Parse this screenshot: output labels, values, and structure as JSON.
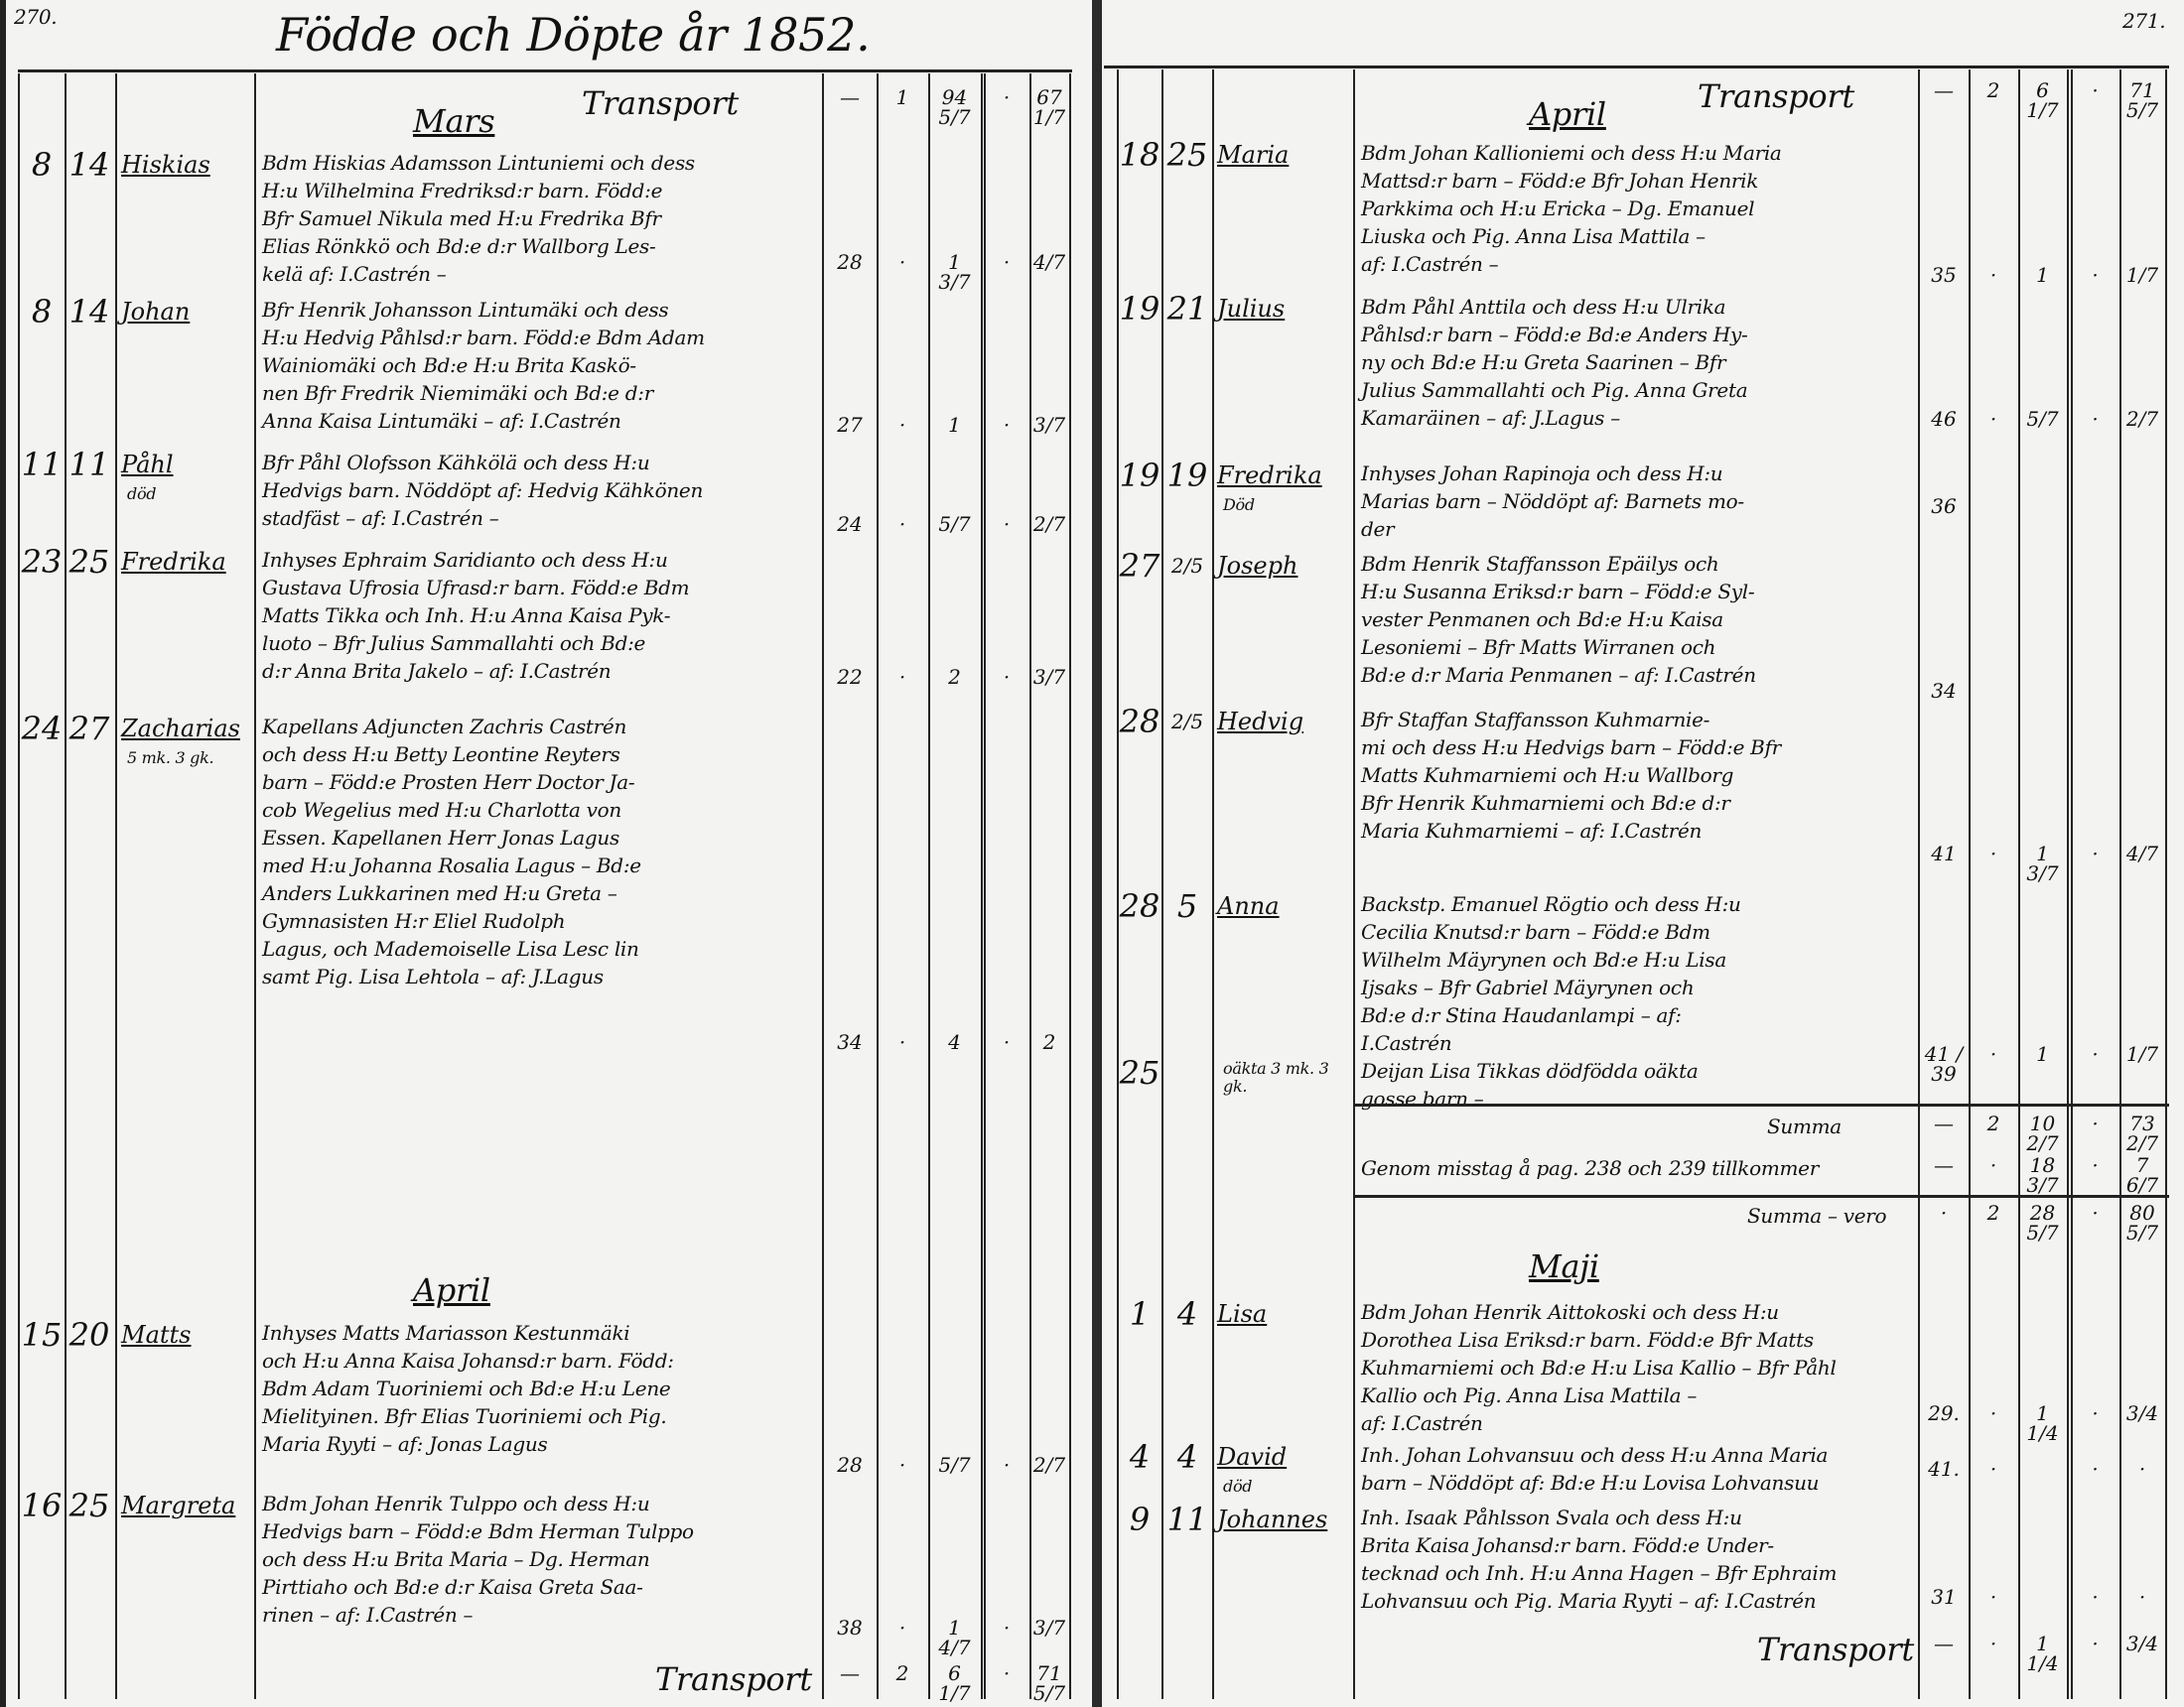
{
  "left_page": {
    "page_number": "270.",
    "title": "Födde och Döpte år 1852.",
    "sections": [
      {
        "month": "Mars",
        "transport_label": "Transport",
        "transport": [
          "—",
          "1",
          "94 5/7",
          "·",
          "67 1/7"
        ]
      },
      {
        "month": "April"
      }
    ],
    "entries": [
      {
        "day": "8",
        "bapt": "14",
        "name": "Hiskias",
        "note": "",
        "lines": [
          "Bdm Hiskias Adamsson Lintuniemi och dess",
          "H:u Wilhelmina Fredriksd:r barn. Född:e",
          "Bfr Samuel Nikula med H:u Fredrika Bfr",
          "Elias Rönkkö och Bd:e d:r Wallborg Les-",
          "kelä                af: I.Castrén –"
        ],
        "nums": [
          "28",
          "·",
          "1 3/7",
          "·",
          "4/7"
        ]
      },
      {
        "day": "8",
        "bapt": "14",
        "name": "Johan",
        "note": "",
        "lines": [
          "Bfr Henrik Johansson Lintumäki och dess",
          "H:u Hedvig Påhlsd:r barn. Född:e Bdm Adam",
          "Wainiomäki och Bd:e H:u Brita Kaskö-",
          "nen Bfr Fredrik Niemimäki och Bd:e d:r",
          "Anna Kaisa Lintumäki – af: I.Castrén"
        ],
        "nums": [
          "27",
          "·",
          "1",
          "·",
          "3/7"
        ]
      },
      {
        "day": "11",
        "bapt": "11",
        "name": "Påhl",
        "note": "död",
        "lines": [
          "Bfr Påhl Olofsson Kähkölä och dess H:u",
          "Hedvigs barn. Nöddöpt af: Hedvig Kähkönen",
          "              stadfäst – af: I.Castrén –"
        ],
        "nums": [
          "24",
          "·",
          "5/7",
          "·",
          "2/7"
        ]
      },
      {
        "day": "23",
        "bapt": "25",
        "name": "Fredrika",
        "note": "",
        "lines": [
          "Inhyses Ephraim Saridianto och dess H:u",
          "Gustava Ufrosia Ufrasd:r barn. Född:e Bdm",
          "Matts Tikka och Inh. H:u Anna Kaisa Pyk-",
          "luoto – Bfr Julius Sammallahti och Bd:e",
          "d:r Anna Brita Jakelo – af: I.Castrén"
        ],
        "nums": [
          "22",
          "·",
          "2",
          "·",
          "3/7"
        ]
      },
      {
        "day": "24",
        "bapt": "27",
        "name": "Zacharias",
        "note": "5 mk. 3 gk.",
        "lines": [
          "Kapellans Adjuncten Zachris Castrén",
          "och dess H:u Betty Leontine Reyters",
          "barn – Född:e Prosten Herr Doctor Ja-",
          "cob Wegelius med H:u Charlotta von",
          "Essen. Kapellanen Herr Jonas Lagus",
          "med H:u Johanna Rosalia Lagus – Bd:e",
          "Anders Lukkarinen med H:u Greta –",
          "Gymnasisten H:r Eliel Rudolph",
          "Lagus, och Mademoiselle Lisa Lesc lin",
          "samt Pig. Lisa Lehtola – af: J.Lagus"
        ],
        "nums": [
          "34",
          "·",
          "4",
          "·",
          "2"
        ]
      },
      {
        "day": "15",
        "bapt": "20",
        "name": "Matts",
        "note": "",
        "lines": [
          "Inhyses Matts Mariasson Kestunmäki",
          "och H:u Anna Kaisa Johansd:r barn. Född:",
          "Bdm Adam Tuoriniemi och Bd:e H:u Lene",
          "Mielityinen. Bfr Elias Tuoriniemi och Pig.",
          "Maria Ryyti –        af: Jonas Lagus"
        ],
        "nums": [
          "28",
          "·",
          "5/7",
          "·",
          "2/7"
        ]
      },
      {
        "day": "16",
        "bapt": "25",
        "name": "Margreta",
        "note": "",
        "lines": [
          "Bdm Johan Henrik Tulppo och dess H:u",
          "Hedvigs barn – Född:e Bdm Herman Tulppo",
          "och dess H:u Brita Maria – Dg. Herman",
          "Pirttiaho och Bd:e d:r Kaisa Greta Saa-",
          "rinen –             af: I.Castrén –"
        ],
        "nums": [
          "38",
          "·",
          "1 4/7",
          "·",
          "3/7"
        ]
      }
    ],
    "footer": {
      "label": "Transport",
      "nums": [
        "—",
        "2",
        "6 1/7",
        "·",
        "71 5/7"
      ]
    }
  },
  "right_page": {
    "page_number": "271.",
    "sections": [
      {
        "month": "April",
        "transport_label": "Transport",
        "transport": [
          "—",
          "2",
          "6 1/7",
          "·",
          "71 5/7"
        ]
      },
      {
        "month": "Maji"
      }
    ],
    "entries": [
      {
        "day": "18",
        "bapt": "25",
        "name": "Maria",
        "note": "",
        "lines": [
          "Bdm Johan Kallioniemi och dess H:u Maria",
          "Mattsd:r barn – Född:e Bfr Johan Henrik",
          "Parkkima och H:u Ericka – Dg. Emanuel",
          "Liuska och Pig. Anna Lisa Mattila –",
          "                  af: I.Castrén –"
        ],
        "nums": [
          "35",
          "·",
          "1",
          "·",
          "1/7"
        ]
      },
      {
        "day": "19",
        "bapt": "21",
        "name": "Julius",
        "note": "",
        "lines": [
          "Bdm Påhl Anttila och dess H:u Ulrika",
          "Påhlsd:r barn – Född:e Bd:e Anders Hy-",
          "ny och Bd:e H:u Greta Saarinen – Bfr",
          "Julius Sammallahti och Pig. Anna Greta",
          "Kamaräinen –       af: J.Lagus –"
        ],
        "nums": [
          "46",
          "·",
          "5/7",
          "·",
          "2/7"
        ]
      },
      {
        "day": "19",
        "bapt": "19",
        "name": "Fredrika",
        "note": "Död",
        "lines": [
          "Inhyses Johan Rapinoja och dess H:u",
          "Marias barn – Nöddöpt af: Barnets mo-",
          "der"
        ],
        "nums": [
          "36",
          "",
          "",
          "",
          ""
        ]
      },
      {
        "day": "27",
        "bapt": "2/5",
        "name": "Joseph",
        "note": "",
        "lines": [
          "Bdm Henrik Staffansson Epäilys och",
          "H:u Susanna Eriksd:r barn – Född:e Syl-",
          "vester Penmanen och Bd:e H:u Kaisa",
          "Lesoniemi – Bfr Matts Wirranen och",
          "Bd:e d:r Maria Penmanen – af: I.Castrén"
        ],
        "nums": [
          "34",
          "",
          "",
          "",
          ""
        ]
      },
      {
        "day": "28",
        "bapt": "2/5",
        "name": "Hedvig",
        "note": "",
        "lines": [
          "Bfr Staffan Staffansson Kuhmarnie-",
          "mi och dess H:u Hedvigs barn – Född:e Bfr",
          "Matts Kuhmarniemi och H:u Wallborg",
          "Bfr Henrik Kuhmarniemi och Bd:e d:r",
          "Maria Kuhmarniemi – af: I.Castrén"
        ],
        "nums": [
          "41",
          "·",
          "1 3/7",
          "·",
          "4/7"
        ]
      },
      {
        "day": "28",
        "bapt": "5",
        "name": "Anna",
        "note": "",
        "lines": [
          "Backstp. Emanuel Rögtio och dess H:u",
          "Cecilia Knutsd:r barn – Född:e Bdm",
          "Wilhelm Mäyrynen och Bd:e H:u Lisa",
          "Ijsaks – Bfr Gabriel Mäyrynen och",
          "Bd:e d:r Stina Haudanlampi – af:",
          "                               I.Castrén"
        ],
        "nums": [
          "41 / 39",
          "·",
          "1",
          "·",
          "1/7"
        ]
      },
      {
        "day": "25",
        "bapt": "",
        "name": "",
        "note": "oäkta   3 mk. 3 gk.",
        "lines": [
          "Deijan Lisa Tikkas dödfödda oäkta",
          "gosse barn –"
        ],
        "nums": [
          "",
          "",
          "",
          "",
          ""
        ]
      },
      {
        "day": "1",
        "bapt": "4",
        "name": "Lisa",
        "note": "",
        "lines": [
          "Bdm Johan Henrik Aittokoski och dess H:u",
          "Dorothea Lisa Eriksd:r barn. Född:e Bfr Matts",
          "Kuhmarniemi och Bd:e H:u Lisa Kallio – Bfr Påhl",
          "Kallio och Pig. Anna Lisa Mattila –",
          "                        af: I.Castrén"
        ],
        "nums": [
          "29.",
          "·",
          "1 1/4",
          "·",
          "3/4"
        ]
      },
      {
        "day": "4",
        "bapt": "4",
        "name": "David",
        "note": "död",
        "lines": [
          "Inh. Johan Lohvansuu och dess H:u Anna Maria",
          "barn – Nöddöpt af: Bd:e H:u Lovisa Lohvansuu"
        ],
        "nums": [
          "41.",
          "·",
          "",
          "·",
          "·"
        ]
      },
      {
        "day": "9",
        "bapt": "11",
        "name": "Johannes",
        "note": "",
        "lines": [
          "Inh. Isaak Påhlsson Svala och dess H:u",
          "Brita Kaisa Johansd:r barn. Född:e Under-",
          "tecknad och Inh. H:u Anna Hagen – Bfr Ephraim",
          "Lohvansuu och Pig. Maria Ryyti – af: I.Castrén"
        ],
        "nums": [
          "31",
          "·",
          "",
          "·",
          "·"
        ]
      }
    ],
    "totals": [
      {
        "label": "Summa",
        "nums": [
          "—",
          "2",
          "10 2/7",
          "·",
          "73 2/7"
        ]
      },
      {
        "label": "Genom misstag å pag. 238 och 239 tillkommer",
        "nums": [
          "—",
          "·",
          "18 3/7",
          "·",
          "7 6/7"
        ]
      },
      {
        "label": "Summa – vero",
        "nums": [
          "·",
          "2",
          "28 5/7",
          "·",
          "80 5/7"
        ]
      }
    ],
    "footer": {
      "label": "Transport",
      "nums": [
        "—",
        "·",
        "1 1/4",
        "·",
        "3/4"
      ]
    }
  },
  "colors": {
    "paper": "#f3f3f1",
    "ink": "#111111"
  }
}
